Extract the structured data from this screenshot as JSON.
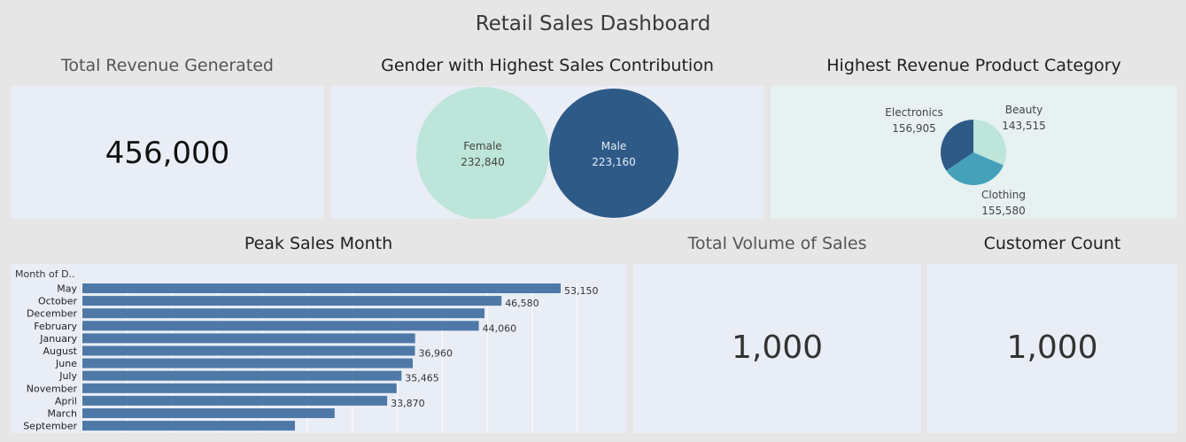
{
  "dashboard": {
    "title": "Retail Sales Dashboard"
  },
  "kpis": {
    "total_revenue": {
      "title": "Total Revenue Generated",
      "value": "456,000"
    },
    "total_volume": {
      "title": "Total Volume of Sales",
      "value": "1,000"
    },
    "customer_count": {
      "title": "Customer Count",
      "value": "1,000"
    }
  },
  "gender_panel": {
    "title": "Gender with Highest Sales Contribution"
  },
  "category_panel": {
    "title": "Highest Revenue Product Category"
  },
  "month_panel": {
    "title": "Peak Sales Month",
    "header": "Month of D.."
  },
  "colors": {
    "mint": "#bde5da",
    "navy": "#2e5a87",
    "teal": "#45a1ba",
    "bar": "#4e79a7"
  },
  "chart_data": [
    {
      "type": "bubble",
      "title": "Gender with Highest Sales Contribution",
      "categories": [
        "Female",
        "Male"
      ],
      "values": [
        232840,
        223160
      ],
      "labels": [
        "232,840",
        "223,160"
      ]
    },
    {
      "type": "pie",
      "title": "Highest Revenue Product Category",
      "categories": [
        "Beauty",
        "Clothing",
        "Electronics"
      ],
      "values": [
        143515,
        155580,
        156905
      ],
      "labels": [
        "143,515",
        "155,580",
        "156,905"
      ]
    },
    {
      "type": "bar",
      "orientation": "horizontal",
      "title": "Peak Sales Month",
      "categories": [
        "May",
        "October",
        "December",
        "February",
        "January",
        "August",
        "June",
        "July",
        "November",
        "April",
        "March",
        "September"
      ],
      "values": [
        53150,
        46580,
        44690,
        44060,
        36980,
        36960,
        36715,
        35465,
        34920,
        33870,
        28035,
        23620
      ],
      "labels": [
        "53,150",
        "46,580",
        "",
        "44,060",
        "",
        "36,960",
        "",
        "35,465",
        "",
        "33,870",
        "",
        ""
      ],
      "xlim": [
        0,
        60000
      ]
    }
  ]
}
